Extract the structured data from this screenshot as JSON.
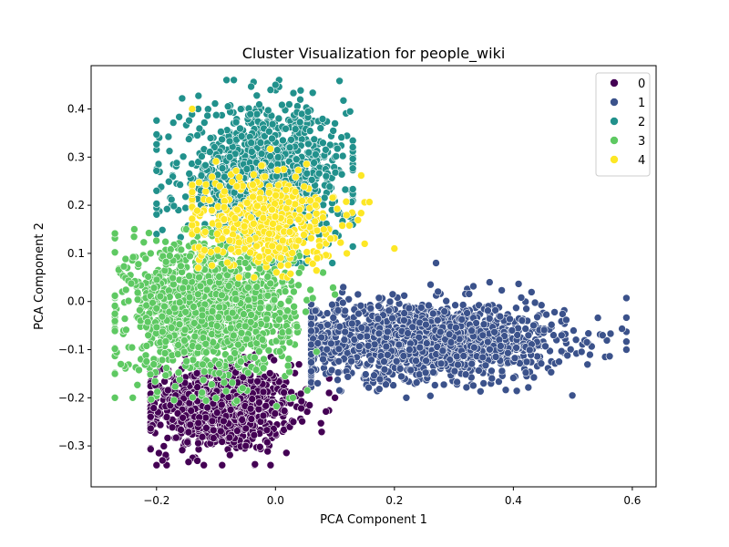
{
  "chart_data": {
    "type": "scatter",
    "title": "Cluster Visualization for people_wiki",
    "xlabel": "PCA Component 1",
    "ylabel": "PCA Component 2",
    "xlim": [
      -0.31,
      0.64
    ],
    "ylim": [
      -0.385,
      0.49
    ],
    "x_ticks": [
      -0.2,
      0.0,
      0.2,
      0.4,
      0.6
    ],
    "y_ticks": [
      -0.3,
      -0.2,
      -0.1,
      0.0,
      0.1,
      0.2,
      0.3,
      0.4
    ],
    "x_tick_labels": [
      "−0.2",
      "0.0",
      "0.2",
      "0.4",
      "0.6"
    ],
    "y_tick_labels": [
      "−0.3",
      "−0.2",
      "−0.1",
      "0.0",
      "0.1",
      "0.2",
      "0.3",
      "0.4"
    ],
    "grid": false,
    "legend_position": "top-right",
    "series": [
      {
        "name": "0",
        "color": "#440154",
        "center": [
          -0.09,
          -0.22
        ],
        "spread": [
          0.06,
          0.045
        ],
        "n": 900,
        "extent": {
          "x": [
            -0.21,
            0.11
          ],
          "y": [
            -0.34,
            -0.04
          ]
        },
        "points": [
          [
            -0.2,
            -0.34
          ],
          [
            -0.19,
            -0.33
          ],
          [
            0.1,
            -0.2
          ],
          [
            0.09,
            -0.19
          ],
          [
            -0.05,
            -0.3
          ],
          [
            0.03,
            -0.25
          ]
        ]
      },
      {
        "name": "1",
        "color": "#3b528b",
        "center": [
          0.25,
          -0.08
        ],
        "spread": [
          0.12,
          0.04
        ],
        "n": 1500,
        "extent": {
          "x": [
            0.06,
            0.59
          ],
          "y": [
            -0.21,
            0.08
          ]
        },
        "points": [
          [
            0.59,
            -0.1
          ],
          [
            0.55,
            -0.07
          ],
          [
            0.27,
            0.08
          ],
          [
            0.36,
            0.04
          ],
          [
            0.22,
            -0.2
          ],
          [
            0.35,
            -0.17
          ]
        ]
      },
      {
        "name": "2",
        "color": "#21918c",
        "center": [
          -0.02,
          0.26
        ],
        "spread": [
          0.07,
          0.07
        ],
        "n": 1100,
        "extent": {
          "x": [
            -0.2,
            0.13
          ],
          "y": [
            0.08,
            0.46
          ]
        },
        "points": [
          [
            -0.07,
            0.46
          ],
          [
            0.0,
            0.45
          ],
          [
            -0.13,
            0.4
          ],
          [
            0.1,
            0.37
          ],
          [
            -0.2,
            0.23
          ],
          [
            0.13,
            0.16
          ]
        ]
      },
      {
        "name": "3",
        "color": "#5ec962",
        "center": [
          -0.11,
          -0.01
        ],
        "spread": [
          0.07,
          0.07
        ],
        "n": 1400,
        "extent": {
          "x": [
            -0.27,
            0.1
          ],
          "y": [
            -0.23,
            0.15
          ]
        },
        "points": [
          [
            -0.27,
            -0.2
          ],
          [
            -0.26,
            -0.13
          ],
          [
            -0.24,
            -0.2
          ],
          [
            -0.21,
            0.1
          ],
          [
            0.08,
            0.06
          ],
          [
            -0.15,
            0.15
          ]
        ]
      },
      {
        "name": "4",
        "color": "#fde725",
        "center": [
          -0.02,
          0.17
        ],
        "spread": [
          0.06,
          0.05
        ],
        "n": 450,
        "extent": {
          "x": [
            -0.14,
            0.2
          ],
          "y": [
            0.05,
            0.4
          ]
        },
        "points": [
          [
            -0.14,
            0.4
          ],
          [
            0.2,
            0.11
          ],
          [
            0.15,
            0.12
          ],
          [
            -0.13,
            0.07
          ],
          [
            0.07,
            0.09
          ],
          [
            0.12,
            0.1
          ]
        ]
      }
    ]
  }
}
